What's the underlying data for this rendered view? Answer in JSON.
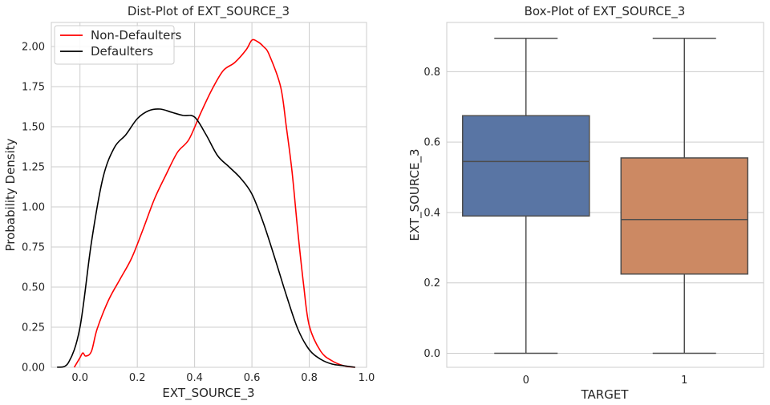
{
  "chart_data": [
    {
      "type": "line",
      "title": "Dist-Plot of EXT_SOURCE_3",
      "xlabel": "EXT_SOURCE_3",
      "ylabel": "Probability Density",
      "xlim": [
        -0.1,
        1.0
      ],
      "ylim": [
        0,
        2.15
      ],
      "xticks": [
        "0.0",
        "0.2",
        "0.4",
        "0.6",
        "0.8",
        "1.0"
      ],
      "yticks": [
        "0.00",
        "0.25",
        "0.50",
        "0.75",
        "1.00",
        "1.25",
        "1.50",
        "1.75",
        "2.00"
      ],
      "grid": true,
      "legend_position": "top-left",
      "series": [
        {
          "name": "Non-Defaulters",
          "color": "#ff0000",
          "x": [
            -0.02,
            0.0,
            0.01,
            0.02,
            0.04,
            0.06,
            0.1,
            0.14,
            0.18,
            0.22,
            0.26,
            0.3,
            0.34,
            0.38,
            0.42,
            0.46,
            0.5,
            0.54,
            0.58,
            0.6,
            0.62,
            0.64,
            0.66,
            0.7,
            0.72,
            0.74,
            0.76,
            0.78,
            0.8,
            0.84,
            0.88,
            0.92,
            0.96
          ],
          "y": [
            0.0,
            0.06,
            0.09,
            0.07,
            0.1,
            0.24,
            0.42,
            0.55,
            0.68,
            0.86,
            1.05,
            1.2,
            1.34,
            1.42,
            1.58,
            1.73,
            1.85,
            1.9,
            1.98,
            2.04,
            2.03,
            2.0,
            1.95,
            1.75,
            1.5,
            1.22,
            0.85,
            0.52,
            0.26,
            0.1,
            0.04,
            0.01,
            0.0
          ]
        },
        {
          "name": "Defaulters",
          "color": "#000000",
          "x": [
            -0.08,
            -0.04,
            0.0,
            0.04,
            0.08,
            0.12,
            0.16,
            0.2,
            0.24,
            0.28,
            0.32,
            0.36,
            0.4,
            0.44,
            0.48,
            0.52,
            0.56,
            0.6,
            0.64,
            0.68,
            0.72,
            0.76,
            0.8,
            0.84,
            0.88,
            0.92,
            0.96
          ],
          "y": [
            0.0,
            0.03,
            0.25,
            0.78,
            1.18,
            1.37,
            1.45,
            1.55,
            1.6,
            1.61,
            1.59,
            1.57,
            1.56,
            1.45,
            1.32,
            1.25,
            1.18,
            1.08,
            0.9,
            0.68,
            0.45,
            0.24,
            0.11,
            0.05,
            0.02,
            0.01,
            0.0
          ]
        }
      ]
    },
    {
      "type": "box",
      "title": "Box-Plot of EXT_SOURCE_3",
      "xlabel": "TARGET",
      "ylabel": "EXT_SOURCE_3",
      "ylim": [
        -0.04,
        0.94
      ],
      "categories": [
        "0",
        "1"
      ],
      "yticks": [
        "0.0",
        "0.2",
        "0.4",
        "0.6",
        "0.8"
      ],
      "grid": true,
      "boxes": [
        {
          "category": "0",
          "color": "#5975a4",
          "whisker_low": 0.0,
          "q1": 0.39,
          "median": 0.545,
          "q3": 0.675,
          "whisker_high": 0.895
        },
        {
          "category": "1",
          "color": "#cc8963",
          "whisker_low": 0.0,
          "q1": 0.225,
          "median": 0.38,
          "q3": 0.555,
          "whisker_high": 0.895
        }
      ]
    }
  ]
}
